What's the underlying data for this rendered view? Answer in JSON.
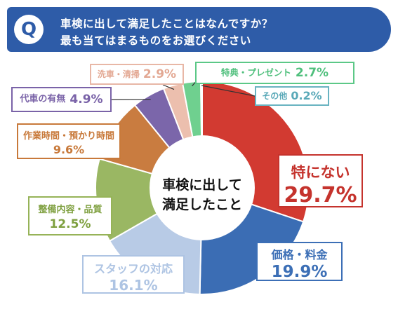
{
  "header": {
    "badge": "Q",
    "question_line_1": "車検に出して満足したことはなんですか？",
    "question_line_2": "最も当てはまるものをお選びください"
  },
  "chart_data": {
    "type": "pie",
    "donut_center_text": [
      "車検に出して",
      "満足したこと"
    ],
    "unit": "%",
    "slices": [
      {
        "label": "特にない",
        "value": 29.7,
        "display": "29.7%",
        "color": "#d23a31"
      },
      {
        "label": "価格・料金",
        "value": 19.9,
        "display": "19.9%",
        "color": "#3b6db4"
      },
      {
        "label": "スタッフの対応",
        "value": 16.1,
        "display": "16.1%",
        "color": "#b8cbe6"
      },
      {
        "label": "整備内容・品質",
        "value": 12.5,
        "display": "12.5%",
        "color": "#9ab763"
      },
      {
        "label": "作業時間・預かり時間",
        "value": 9.6,
        "display": "9.6%",
        "color": "#c97c40"
      },
      {
        "label": "代車の有無",
        "value": 4.9,
        "display": "4.9%",
        "color": "#7b66aa"
      },
      {
        "label": "洗車・清掃",
        "value": 2.9,
        "display": "2.9%",
        "color": "#ecbfae"
      },
      {
        "label": "特典・プレゼント",
        "value": 2.7,
        "display": "2.7%",
        "color": "#6fd08f"
      },
      {
        "label": "その他",
        "value": 0.2,
        "display": "0.2%",
        "color": "#5fb0c0"
      }
    ]
  }
}
